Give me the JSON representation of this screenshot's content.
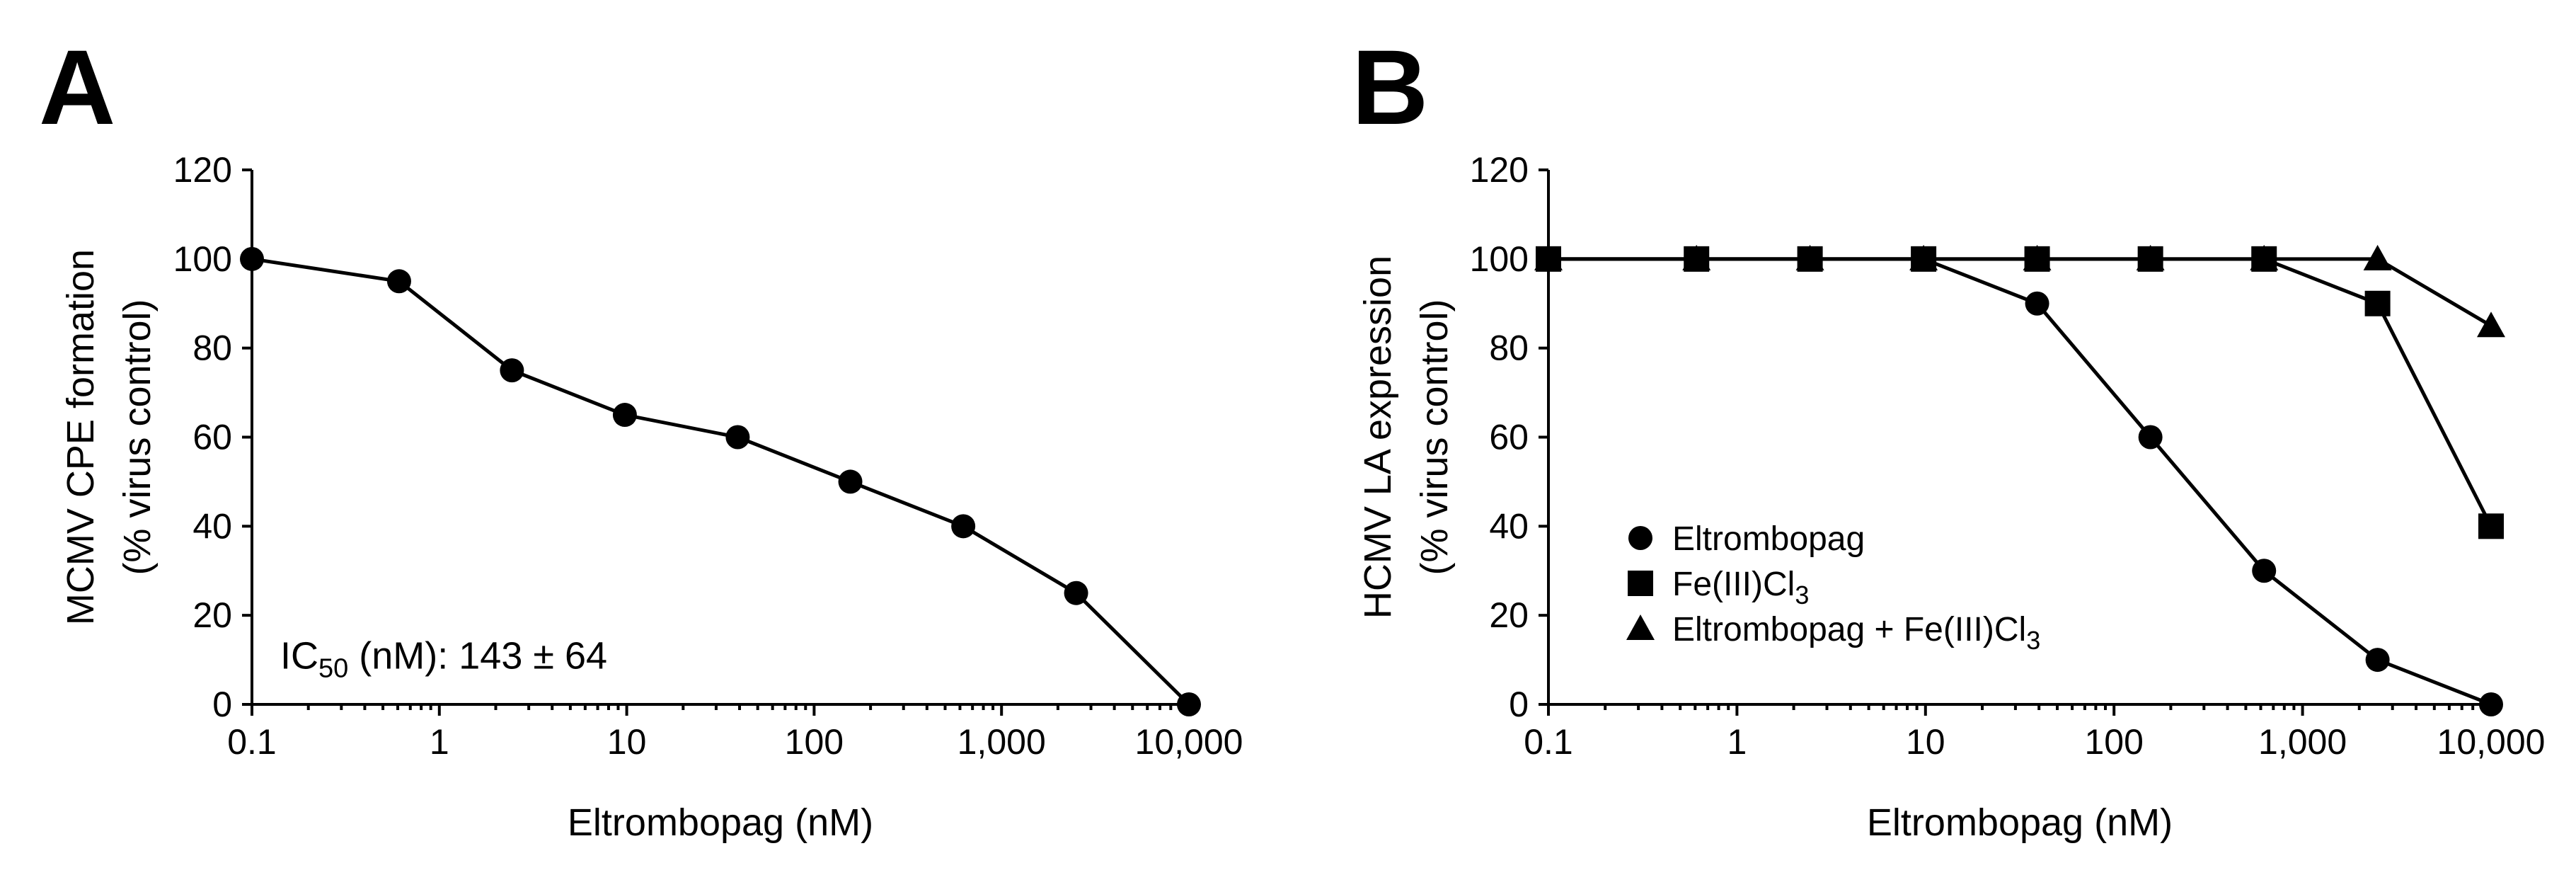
{
  "chart_data": [
    {
      "type": "line",
      "panel_label": "A",
      "title": "",
      "xlabel": "Eltrombopag (nM)",
      "ylabel_line1": "MCMV CPE formation",
      "ylabel_line2": "(% virus control)",
      "xscale": "log",
      "xlim": [
        0.1,
        10000
      ],
      "ylim": [
        0,
        120
      ],
      "x_ticks": [
        0.1,
        1,
        10,
        100,
        1000,
        10000
      ],
      "x_tick_labels": [
        "0.1",
        "1",
        "10",
        "100",
        "1,000",
        "10,000"
      ],
      "y_ticks": [
        0,
        20,
        40,
        60,
        80,
        100,
        120
      ],
      "y_tick_labels": [
        "0",
        "20",
        "40",
        "60",
        "80",
        "100",
        "120"
      ],
      "annotation": {
        "prefix": "IC",
        "subscript": "50",
        "suffix": " (nM): 143 ± 64"
      },
      "series": [
        {
          "name": "MCMV",
          "marker": "circle",
          "x": [
            0.1,
            0.61,
            2.44,
            9.77,
            39.1,
            156,
            625,
            2500,
            10000
          ],
          "y": [
            100,
            95,
            75,
            65,
            60,
            50,
            40,
            25,
            0
          ]
        }
      ]
    },
    {
      "type": "line",
      "panel_label": "B",
      "title": "",
      "xlabel": "Eltrombopag (nM)",
      "ylabel_line1": "HCMV LA expression",
      "ylabel_line2": "(% virus control)",
      "xscale": "log",
      "xlim": [
        0.1,
        10000
      ],
      "ylim": [
        0,
        120
      ],
      "x_ticks": [
        0.1,
        1,
        10,
        100,
        1000,
        10000
      ],
      "x_tick_labels": [
        "0.1",
        "1",
        "10",
        "100",
        "1,000",
        "10,000"
      ],
      "y_ticks": [
        0,
        20,
        40,
        60,
        80,
        100,
        120
      ],
      "y_tick_labels": [
        "0",
        "20",
        "40",
        "60",
        "80",
        "100",
        "120"
      ],
      "legend_position": "bottom-left",
      "series": [
        {
          "name": "Eltrombopag",
          "legend_base": "Eltrombopag",
          "legend_sub": "",
          "marker": "circle",
          "x": [
            0.1,
            0.61,
            2.44,
            9.77,
            39.1,
            156,
            625,
            2500,
            10000
          ],
          "y": [
            100,
            100,
            100,
            100,
            90,
            60,
            30,
            10,
            0
          ]
        },
        {
          "name": "Fe(III)Cl3",
          "legend_base": "Fe(III)Cl",
          "legend_sub": "3",
          "marker": "square",
          "x": [
            0.1,
            0.61,
            2.44,
            9.77,
            39.1,
            156,
            625,
            2500,
            10000
          ],
          "y": [
            100,
            100,
            100,
            100,
            100,
            100,
            100,
            90,
            40
          ]
        },
        {
          "name": "Eltrombopag + Fe(III)Cl3",
          "legend_base": "Eltrombopag + Fe(III)Cl",
          "legend_sub": "3",
          "marker": "triangle",
          "x": [
            0.1,
            0.61,
            2.44,
            9.77,
            39.1,
            156,
            625,
            2500,
            10000
          ],
          "y": [
            100,
            100,
            100,
            100,
            100,
            100,
            100,
            100,
            85
          ]
        }
      ]
    }
  ]
}
